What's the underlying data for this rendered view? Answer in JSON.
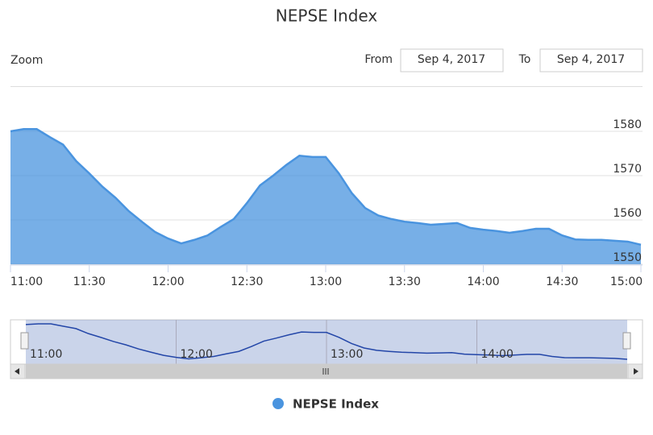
{
  "chart_data": {
    "type": "area",
    "title": "NEPSE Index",
    "ui": {
      "zoom_label": "Zoom",
      "from_label": "From",
      "from_date": "Sep 4, 2017",
      "to_label": "To",
      "to_date": "Sep 4, 2017"
    },
    "x": [
      "11:00",
      "11:05",
      "11:10",
      "11:15",
      "11:20",
      "11:25",
      "11:30",
      "11:35",
      "11:40",
      "11:45",
      "11:50",
      "11:55",
      "12:00",
      "12:05",
      "12:10",
      "12:15",
      "12:20",
      "12:25",
      "12:30",
      "12:35",
      "12:40",
      "12:45",
      "12:50",
      "12:55",
      "13:00",
      "13:05",
      "13:10",
      "13:15",
      "13:20",
      "13:25",
      "13:30",
      "13:35",
      "13:40",
      "13:45",
      "13:50",
      "13:55",
      "14:00",
      "14:05",
      "14:10",
      "14:15",
      "14:20",
      "14:25",
      "14:30",
      "14:35",
      "14:40",
      "14:45",
      "14:50",
      "14:55",
      "15:00"
    ],
    "series": [
      {
        "name": "NEPSE Index",
        "color": "#4a94df",
        "values": [
          1580,
          1580.5,
          1580.5,
          1578.7,
          1577,
          1573.3,
          1570.5,
          1567.5,
          1565,
          1562,
          1559.6,
          1557.3,
          1555.8,
          1554.7,
          1555.5,
          1556.5,
          1558.4,
          1560.2,
          1563.8,
          1567.8,
          1570,
          1572.4,
          1574.5,
          1574.2,
          1574.2,
          1570.5,
          1566,
          1562.7,
          1561,
          1560.2,
          1559.6,
          1559.3,
          1558.9,
          1559.1,
          1559.3,
          1558.2,
          1557.8,
          1557.5,
          1557.1,
          1557.5,
          1558,
          1558,
          1556.5,
          1555.6,
          1555.5,
          1555.5,
          1555.3,
          1555.1,
          1554.4
        ]
      }
    ],
    "xticks": [
      "11:00",
      "11:30",
      "12:00",
      "12:30",
      "13:00",
      "13:30",
      "14:00",
      "14:30",
      "15:00"
    ],
    "ylim": [
      1550,
      1590
    ],
    "yticks": [
      1550,
      1560,
      1570,
      1580
    ],
    "grid": true,
    "navigator": {
      "xticks": [
        "11:00",
        "12:00",
        "13:00",
        "14:00"
      ]
    },
    "legend": "bottom"
  }
}
